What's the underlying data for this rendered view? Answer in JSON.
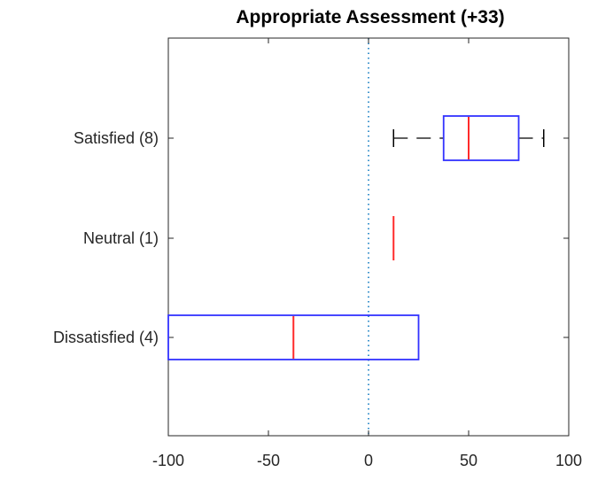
{
  "chart_data": {
    "type": "boxplot",
    "orientation": "horizontal",
    "title": "Appropriate Assessment (+33)",
    "xlabel": "",
    "ylabel": "",
    "xlim": [
      -100,
      100
    ],
    "xticks": [
      -100,
      -50,
      0,
      50,
      100
    ],
    "xtick_labels": [
      "-100",
      "-50",
      "0",
      "50",
      "100"
    ],
    "reference_line": {
      "x": 0,
      "style": "dotted",
      "color": "#0072BD"
    },
    "grid": false,
    "legend": "none",
    "categories": [
      "Satisfied (8)",
      "Neutral (1)",
      "Dissatisfied (4)"
    ],
    "boxes": [
      {
        "label": "Satisfied (8)",
        "whisker_low": 12.5,
        "q1": 37.5,
        "median": 50,
        "q3": 75,
        "whisker_high": 87.5
      },
      {
        "label": "Neutral (1)",
        "whisker_low": 12.5,
        "q1": 12.5,
        "median": 12.5,
        "q3": 12.5,
        "whisker_high": 12.5
      },
      {
        "label": "Dissatisfied (4)",
        "whisker_low": -100,
        "q1": -100,
        "median": -37.5,
        "q3": 25,
        "whisker_high": 25
      }
    ],
    "colors": {
      "box": "#3333FF",
      "median": "#FF2A2A",
      "whisker": "#000000",
      "axis": "#262626"
    }
  }
}
